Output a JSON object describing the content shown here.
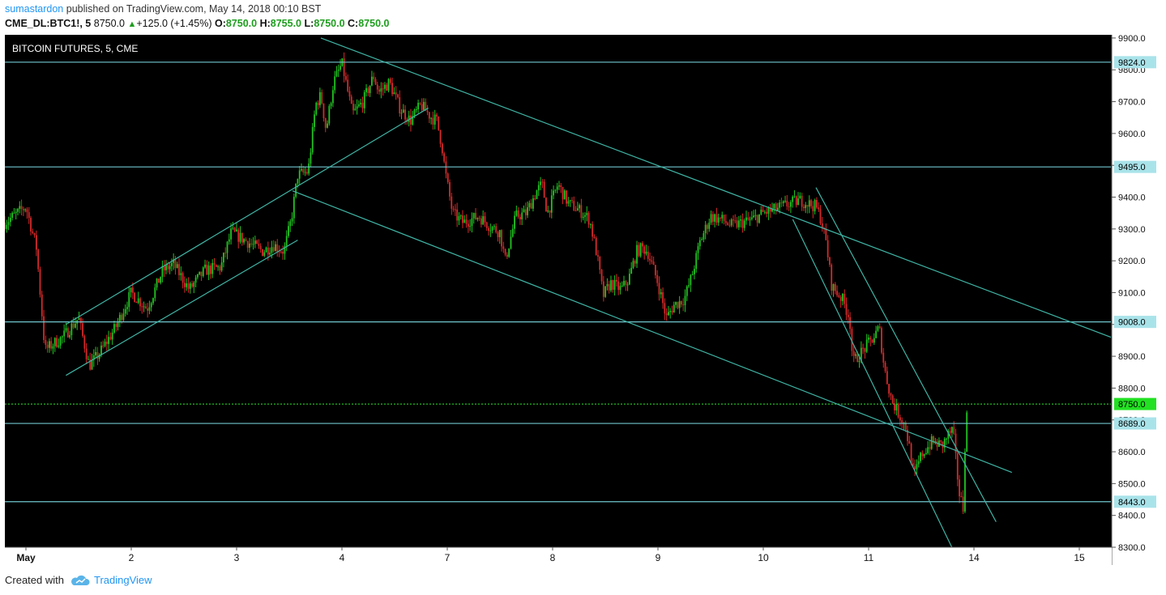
{
  "header": {
    "author": "sumastardon",
    "published_text": "published on TradingView.com, May 14, 2018 00:10 BST",
    "symbol": "CME_DL:BTC1!, 5",
    "last": "8750.0",
    "change": "+125.0 (+1.45%)",
    "o_label": "O:",
    "o_value": "8750.0",
    "h_label": "H:",
    "h_value": "8755.0",
    "l_label": "L:",
    "l_value": "8750.0",
    "c_label": "C:",
    "c_value": "8750.0"
  },
  "footer": {
    "created_with": "Created with",
    "brand": "TradingView"
  },
  "colors": {
    "background": "#000000",
    "up_candle": "#22c322",
    "down_candle": "#d42a2a",
    "level_line": "#6fc6ce",
    "trend_line": "#3fb5a5",
    "current_price": "#2ee82e",
    "axis_text": "#111111"
  },
  "chart_data": {
    "type": "candlestick",
    "title": "BITCOIN FUTURES, 5, CME",
    "x_ticks": [
      "May",
      "2",
      "3",
      "4",
      "7",
      "8",
      "9",
      "10",
      "11",
      "14",
      "15"
    ],
    "x_tick_positions": [
      0.2,
      1.2,
      2.2,
      3.2,
      4.2,
      5.2,
      6.2,
      7.2,
      8.2,
      9.2,
      10.2
    ],
    "x_range": [
      0,
      10.5
    ],
    "y_ticks": [
      9900,
      9800,
      9700,
      9600,
      9500,
      9400,
      9300,
      9200,
      9100,
      9000,
      8900,
      8800,
      8700,
      8600,
      8500,
      8400,
      8300
    ],
    "y_tick_labels": [
      "9900.0",
      "9800.0",
      "9700.0",
      "9600.0",
      "9500.0",
      "9400.0",
      "9300.0",
      "9200.0",
      "9100.0",
      "9000.0",
      "8900.0",
      "8800.0",
      "8700.0",
      "8600.0",
      "8500.0",
      "8400.0",
      "8300.0"
    ],
    "y_range": [
      8300,
      9910
    ],
    "horizontal_levels": [
      {
        "value": 9824,
        "label": "9824.0"
      },
      {
        "value": 9495,
        "label": "9495.0"
      },
      {
        "value": 9008,
        "label": "9008.0"
      },
      {
        "value": 8689,
        "label": "8689.0"
      },
      {
        "value": 8443,
        "label": "8443.0"
      }
    ],
    "current_price": {
      "value": 8750,
      "label": "8750.0"
    },
    "price_path": [
      [
        0.0,
        9320
      ],
      [
        0.2,
        9370
      ],
      [
        0.3,
        9240
      ],
      [
        0.38,
        8920
      ],
      [
        0.55,
        8960
      ],
      [
        0.7,
        9020
      ],
      [
        0.8,
        8870
      ],
      [
        0.9,
        8910
      ],
      [
        1.05,
        8990
      ],
      [
        1.2,
        9100
      ],
      [
        1.35,
        9050
      ],
      [
        1.5,
        9170
      ],
      [
        1.6,
        9190
      ],
      [
        1.75,
        9110
      ],
      [
        1.9,
        9170
      ],
      [
        2.05,
        9180
      ],
      [
        2.15,
        9290
      ],
      [
        2.25,
        9270
      ],
      [
        2.35,
        9250
      ],
      [
        2.45,
        9230
      ],
      [
        2.55,
        9250
      ],
      [
        2.65,
        9230
      ],
      [
        2.72,
        9330
      ],
      [
        2.78,
        9470
      ],
      [
        2.88,
        9480
      ],
      [
        2.95,
        9690
      ],
      [
        3.0,
        9720
      ],
      [
        3.05,
        9610
      ],
      [
        3.12,
        9760
      ],
      [
        3.2,
        9820
      ],
      [
        3.3,
        9660
      ],
      [
        3.4,
        9700
      ],
      [
        3.5,
        9780
      ],
      [
        3.55,
        9730
      ],
      [
        3.65,
        9760
      ],
      [
        3.75,
        9680
      ],
      [
        3.85,
        9640
      ],
      [
        3.95,
        9690
      ],
      [
        4.05,
        9650
      ],
      [
        4.1,
        9640
      ],
      [
        4.15,
        9560
      ],
      [
        4.18,
        9480
      ],
      [
        4.25,
        9350
      ],
      [
        4.35,
        9320
      ],
      [
        4.5,
        9340
      ],
      [
        4.6,
        9310
      ],
      [
        4.7,
        9290
      ],
      [
        4.75,
        9200
      ],
      [
        4.85,
        9340
      ],
      [
        4.95,
        9350
      ],
      [
        5.05,
        9420
      ],
      [
        5.1,
        9440
      ],
      [
        5.15,
        9350
      ],
      [
        5.25,
        9440
      ],
      [
        5.35,
        9380
      ],
      [
        5.45,
        9360
      ],
      [
        5.55,
        9330
      ],
      [
        5.62,
        9220
      ],
      [
        5.68,
        9090
      ],
      [
        5.75,
        9130
      ],
      [
        5.85,
        9110
      ],
      [
        5.92,
        9140
      ],
      [
        6.0,
        9230
      ],
      [
        6.05,
        9240
      ],
      [
        6.1,
        9230
      ],
      [
        6.2,
        9130
      ],
      [
        6.28,
        9020
      ],
      [
        6.35,
        9060
      ],
      [
        6.45,
        9080
      ],
      [
        6.52,
        9150
      ],
      [
        6.6,
        9260
      ],
      [
        6.7,
        9340
      ],
      [
        6.8,
        9330
      ],
      [
        6.9,
        9310
      ],
      [
        7.0,
        9320
      ],
      [
        7.1,
        9330
      ],
      [
        7.2,
        9350
      ],
      [
        7.3,
        9360
      ],
      [
        7.45,
        9380
      ],
      [
        7.55,
        9390
      ],
      [
        7.7,
        9370
      ],
      [
        7.75,
        9330
      ],
      [
        7.8,
        9250
      ],
      [
        7.85,
        9120
      ],
      [
        7.95,
        9080
      ],
      [
        8.02,
        9020
      ],
      [
        8.05,
        8880
      ],
      [
        8.15,
        8920
      ],
      [
        8.25,
        8960
      ],
      [
        8.3,
        8990
      ],
      [
        8.35,
        8860
      ],
      [
        8.42,
        8760
      ],
      [
        8.5,
        8710
      ],
      [
        8.55,
        8680
      ],
      [
        8.6,
        8590
      ],
      [
        8.63,
        8520
      ],
      [
        8.7,
        8590
      ],
      [
        8.8,
        8630
      ],
      [
        8.9,
        8620
      ],
      [
        8.95,
        8650
      ],
      [
        9.0,
        8670
      ],
      [
        9.02,
        8600
      ],
      [
        9.06,
        8470
      ],
      [
        9.1,
        8420
      ],
      [
        9.12,
        8690
      ],
      [
        9.15,
        8750
      ]
    ],
    "trend_lines": [
      {
        "x1": 0.58,
        "y1": 8840,
        "x2": 2.78,
        "y2": 9265
      },
      {
        "x1": 0.58,
        "y1": 9000,
        "x2": 4.02,
        "y2": 9680
      },
      {
        "x1": 2.73,
        "y1": 9420,
        "x2": 9.56,
        "y2": 8535
      },
      {
        "x1": 3.0,
        "y1": 9900,
        "x2": 10.5,
        "y2": 8960
      },
      {
        "x1": 7.48,
        "y1": 9330,
        "x2": 8.99,
        "y2": 8300
      },
      {
        "x1": 7.7,
        "y1": 9430,
        "x2": 9.41,
        "y2": 8380
      }
    ]
  }
}
